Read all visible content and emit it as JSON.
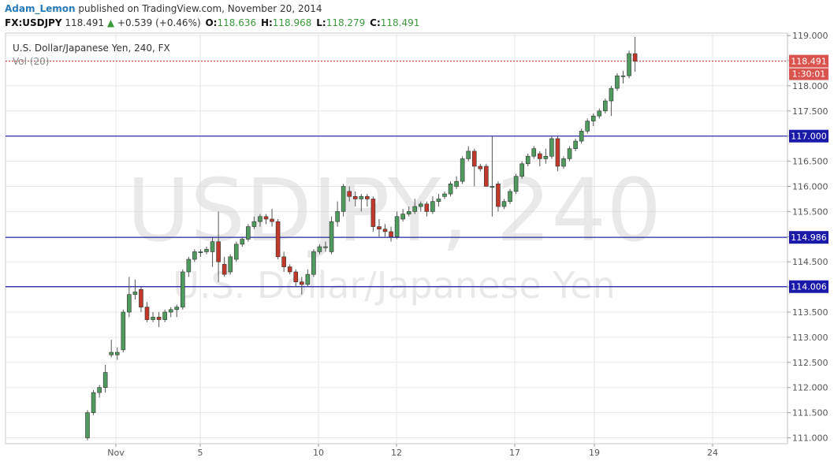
{
  "header": {
    "author": "Adam_Lemon",
    "published": "published on TradingView.com, November 20, 2014",
    "symbol": "FX:USDJPY",
    "last": "118.491",
    "change_arrow": "▲",
    "change": "+0.539 (+0.46%)",
    "o_label": "O:",
    "o_value": "118.636",
    "h_label": "H:",
    "h_value": "118.968",
    "l_label": "L:",
    "l_value": "118.279",
    "c_label": "C:",
    "c_value": "118.491"
  },
  "chart_data": {
    "type": "candlestick",
    "title": "U.S. Dollar/Japanese Yen, 240, FX",
    "volume_label": "Vol (20)",
    "watermark_symbol": "USDJPY, 240",
    "watermark_name": "U.S. Dollar/Japanese Yen",
    "x_ticks": [
      "Nov",
      "5",
      "10",
      "12",
      "17",
      "19",
      "24"
    ],
    "y_range": [
      110.9,
      119.1
    ],
    "y_ticks": [
      "111.000",
      "111.500",
      "112.000",
      "112.500",
      "113.000",
      "113.500",
      "114.000",
      "114.500",
      "115.000",
      "115.500",
      "116.000",
      "116.500",
      "117.000",
      "117.500",
      "118.000",
      "118.500",
      "119.000"
    ],
    "horizontal_lines": [
      {
        "value": 117.0,
        "label": "117.000"
      },
      {
        "value": 114.986,
        "label": "114.986"
      },
      {
        "value": 114.006,
        "label": "114.006"
      }
    ],
    "last_price": {
      "value": 118.491,
      "label": "118.491",
      "countdown": "1:30:01"
    },
    "colors": {
      "up": "#4e9a5f",
      "down": "#c0392b",
      "level_line": "#1a1aa8",
      "grid": "#e6e6e6"
    },
    "candles": [
      [
        111.0,
        111.5,
        110.95,
        111.55
      ],
      [
        111.5,
        111.9,
        111.45,
        111.95
      ],
      [
        111.9,
        112.0,
        111.8,
        112.05
      ],
      [
        112.0,
        112.3,
        111.9,
        112.45
      ],
      [
        112.65,
        112.7,
        112.6,
        112.95
      ],
      [
        112.65,
        112.7,
        112.55,
        112.8
      ],
      [
        112.75,
        113.5,
        112.7,
        113.55
      ],
      [
        113.5,
        113.85,
        113.4,
        114.2
      ],
      [
        113.85,
        113.9,
        113.75,
        114.15
      ],
      [
        113.95,
        113.6,
        113.5,
        114.0
      ],
      [
        113.6,
        113.35,
        113.3,
        113.7
      ],
      [
        113.35,
        113.4,
        113.3,
        113.5
      ],
      [
        113.4,
        113.35,
        113.2,
        113.5
      ],
      [
        113.35,
        113.5,
        113.3,
        113.55
      ],
      [
        113.5,
        113.55,
        113.4,
        113.6
      ],
      [
        113.55,
        113.6,
        113.4,
        113.65
      ],
      [
        113.6,
        114.3,
        113.55,
        114.35
      ],
      [
        114.3,
        114.55,
        114.2,
        114.6
      ],
      [
        114.55,
        114.7,
        114.5,
        114.75
      ],
      [
        114.7,
        114.7,
        114.6,
        114.75
      ],
      [
        114.7,
        114.75,
        114.65,
        114.8
      ],
      [
        114.7,
        114.9,
        114.4,
        115.0
      ],
      [
        114.9,
        114.5,
        114.1,
        115.5
      ],
      [
        114.45,
        114.25,
        114.2,
        114.6
      ],
      [
        114.3,
        114.6,
        114.25,
        114.65
      ],
      [
        114.55,
        114.85,
        114.5,
        114.9
      ],
      [
        114.85,
        114.95,
        114.8,
        115.0
      ],
      [
        114.95,
        115.2,
        114.9,
        115.25
      ],
      [
        115.2,
        115.3,
        115.15,
        115.4
      ],
      [
        115.3,
        115.4,
        115.2,
        115.45
      ],
      [
        115.4,
        115.35,
        115.25,
        115.45
      ],
      [
        115.35,
        115.3,
        115.2,
        115.55
      ],
      [
        115.3,
        114.6,
        114.55,
        115.35
      ],
      [
        114.6,
        114.4,
        114.3,
        114.7
      ],
      [
        114.4,
        114.3,
        114.25,
        114.45
      ],
      [
        114.3,
        114.1,
        114.0,
        114.35
      ],
      [
        114.1,
        114.05,
        113.85,
        114.2
      ],
      [
        114.05,
        114.25,
        114.0,
        114.35
      ],
      [
        114.25,
        114.7,
        114.2,
        114.75
      ],
      [
        114.7,
        114.8,
        114.65,
        114.85
      ],
      [
        114.8,
        114.8,
        114.7,
        114.9
      ],
      [
        114.7,
        115.3,
        114.65,
        115.4
      ],
      [
        115.3,
        115.5,
        115.2,
        115.7
      ],
      [
        115.5,
        116.0,
        115.4,
        116.05
      ],
      [
        115.9,
        115.8,
        115.7,
        116.0
      ],
      [
        115.8,
        115.75,
        115.6,
        115.9
      ],
      [
        115.75,
        115.8,
        115.5,
        115.85
      ],
      [
        115.8,
        115.75,
        115.6,
        115.85
      ],
      [
        115.75,
        115.2,
        115.1,
        115.8
      ],
      [
        115.2,
        115.15,
        115.0,
        115.35
      ],
      [
        115.15,
        115.1,
        115.0,
        115.25
      ],
      [
        115.1,
        115.0,
        114.9,
        115.2
      ],
      [
        115.0,
        115.4,
        114.95,
        115.5
      ],
      [
        115.35,
        115.45,
        115.3,
        115.55
      ],
      [
        115.45,
        115.5,
        115.4,
        115.6
      ],
      [
        115.5,
        115.6,
        115.45,
        115.75
      ],
      [
        115.6,
        115.65,
        115.5,
        115.7
      ],
      [
        115.65,
        115.5,
        115.4,
        115.7
      ],
      [
        115.5,
        115.7,
        115.45,
        115.8
      ],
      [
        115.7,
        115.75,
        115.6,
        115.85
      ],
      [
        115.8,
        115.85,
        115.75,
        115.9
      ],
      [
        115.85,
        116.05,
        115.8,
        116.1
      ],
      [
        116.0,
        116.1,
        115.95,
        116.2
      ],
      [
        116.1,
        116.55,
        116.05,
        116.6
      ],
      [
        116.55,
        116.7,
        116.5,
        116.8
      ],
      [
        116.7,
        116.4,
        116.0,
        116.75
      ],
      [
        116.4,
        116.35,
        116.3,
        116.45
      ],
      [
        116.4,
        116.0,
        116.0,
        116.45
      ],
      [
        116.0,
        116.0,
        115.4,
        117.0
      ],
      [
        116.05,
        115.6,
        115.5,
        116.1
      ],
      [
        115.6,
        115.7,
        115.55,
        115.75
      ],
      [
        115.7,
        115.9,
        115.65,
        115.95
      ],
      [
        115.9,
        116.2,
        115.85,
        116.25
      ],
      [
        116.2,
        116.45,
        116.15,
        116.5
      ],
      [
        116.45,
        116.6,
        116.4,
        116.65
      ],
      [
        116.6,
        116.75,
        116.55,
        116.8
      ],
      [
        116.65,
        116.55,
        116.4,
        116.7
      ],
      [
        116.55,
        116.6,
        116.45,
        116.75
      ],
      [
        116.6,
        116.95,
        116.55,
        117.0
      ],
      [
        116.95,
        116.4,
        116.3,
        117.0
      ],
      [
        116.4,
        116.55,
        116.35,
        116.6
      ],
      [
        116.55,
        116.75,
        116.5,
        116.8
      ],
      [
        116.75,
        116.9,
        116.7,
        116.95
      ],
      [
        116.9,
        117.1,
        116.85,
        117.15
      ],
      [
        117.1,
        117.3,
        117.05,
        117.35
      ],
      [
        117.3,
        117.4,
        117.2,
        117.45
      ],
      [
        117.4,
        117.5,
        117.35,
        117.55
      ],
      [
        117.5,
        117.7,
        117.45,
        117.75
      ],
      [
        117.7,
        117.95,
        117.4,
        118.0
      ],
      [
        117.95,
        118.2,
        117.9,
        118.25
      ],
      [
        118.2,
        118.2,
        118.05,
        118.3
      ],
      [
        118.2,
        118.64,
        118.15,
        118.7
      ],
      [
        118.64,
        118.49,
        118.28,
        118.97
      ]
    ]
  }
}
